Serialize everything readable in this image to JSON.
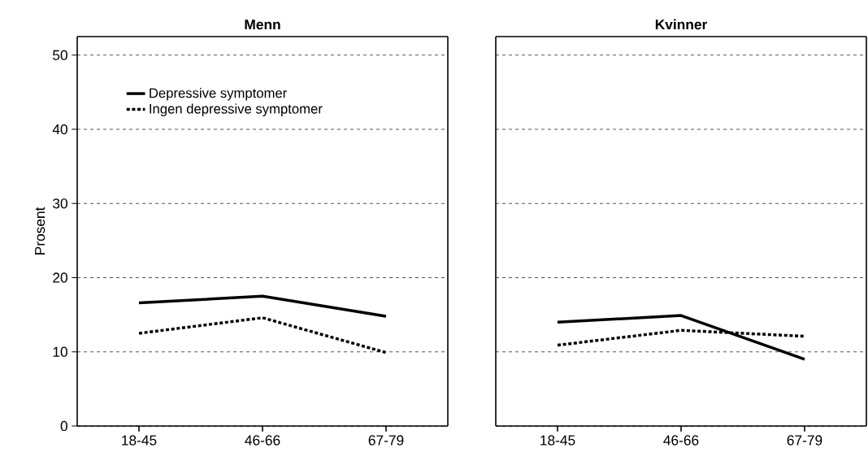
{
  "chart_data": [
    {
      "type": "line",
      "title": "Menn",
      "ylabel": "Prosent",
      "categories": [
        "18-45",
        "46-66",
        "67-79"
      ],
      "series": [
        {
          "name": "Depressive symptomer",
          "color": "#000000",
          "line_style": "solid",
          "values": [
            16.6,
            17.5,
            14.8
          ]
        },
        {
          "name": "Ingen depressive symptomer",
          "color": "#000000",
          "line_style": "dotted",
          "values": [
            12.5,
            14.6,
            9.9
          ]
        }
      ],
      "ylim": [
        0,
        52.5
      ],
      "yticks": [
        0,
        10,
        20,
        30,
        40,
        50
      ],
      "grid": "y",
      "legend": "top left",
      "marker": "none"
    },
    {
      "type": "line",
      "title": "Kvinner",
      "categories": [
        "18-45",
        "46-66",
        "67-79"
      ],
      "series": [
        {
          "color": "#000000",
          "line_style": "solid",
          "values": [
            14.0,
            14.9,
            9.0
          ]
        },
        {
          "color": "#000000",
          "line_style": "dotted",
          "values": [
            10.9,
            12.9,
            12.1
          ]
        }
      ],
      "ylim": [
        0,
        52.5
      ],
      "yticks": [
        0,
        10,
        20,
        30,
        40,
        50
      ],
      "grid": "y",
      "tick_labels": "x",
      "legend": false,
      "marker": "none"
    }
  ]
}
